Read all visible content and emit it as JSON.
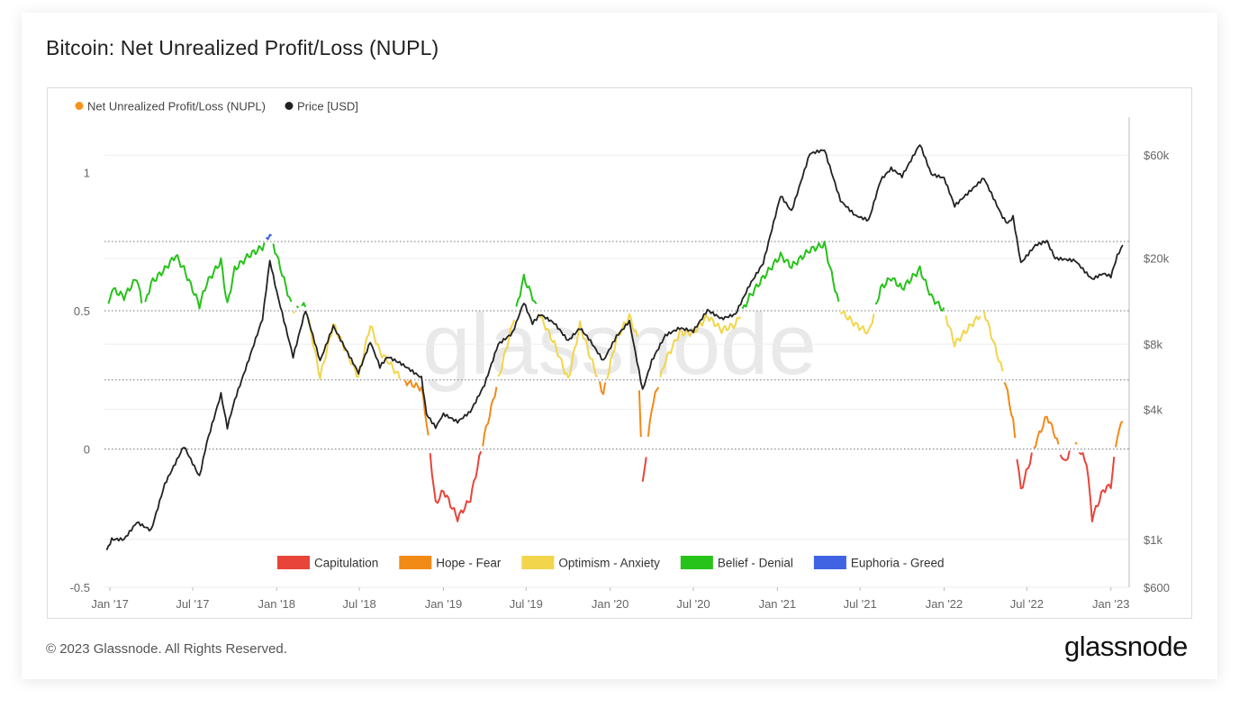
{
  "page": {
    "title": "Bitcoin: Net Unrealized Profit/Loss (NUPL)",
    "footer": "© 2023 Glassnode. All Rights Reserved.",
    "brand": "glassnode",
    "watermark": "glassnode"
  },
  "chart_data": {
    "type": "line",
    "title": "Bitcoin: Net Unrealized Profit/Loss (NUPL)",
    "legend_top": [
      {
        "name": "Net Unrealized Profit/Loss (NUPL)",
        "color": "#f7931a"
      },
      {
        "name": "Price [USD]",
        "color": "#222222"
      }
    ],
    "legend_bottom": [
      {
        "name": "Capitulation",
        "color": "#e8443a"
      },
      {
        "name": "Hope - Fear",
        "color": "#f28a16"
      },
      {
        "name": "Optimism - Anxiety",
        "color": "#f2d54b"
      },
      {
        "name": "Belief - Denial",
        "color": "#27c21a"
      },
      {
        "name": "Euphoria - Greed",
        "color": "#3f63e3"
      }
    ],
    "zones": [
      {
        "name": "Capitulation",
        "from": -0.5,
        "to": 0,
        "color": "#e8443a"
      },
      {
        "name": "Hope - Fear",
        "from": 0,
        "to": 0.25,
        "color": "#f28a16"
      },
      {
        "name": "Optimism - Anxiety",
        "from": 0.25,
        "to": 0.5,
        "color": "#f2d54b"
      },
      {
        "name": "Belief - Denial",
        "from": 0.5,
        "to": 0.75,
        "color": "#27c21a"
      },
      {
        "name": "Euphoria - Greed",
        "from": 0.75,
        "to": 1.2,
        "color": "#3f63e3"
      }
    ],
    "x_ticks": [
      "Jan '17",
      "Jul '17",
      "Jan '18",
      "Jul '18",
      "Jan '19",
      "Jul '19",
      "Jan '20",
      "Jul '20",
      "Jan '21",
      "Jul '21",
      "Jan '22",
      "Jul '22",
      "Jan '23"
    ],
    "y_left": {
      "ticks": [
        -0.5,
        0,
        0.5,
        1
      ],
      "tick_labels": [
        "-0.5",
        "0",
        "0.5",
        "1"
      ],
      "range": [
        -0.5,
        1.2
      ],
      "reference_lines": [
        0,
        0.25,
        0.5,
        0.75
      ]
    },
    "y_right": {
      "scale": "log",
      "ticks": [
        600,
        1000,
        4000,
        8000,
        20000,
        60000
      ],
      "tick_labels": [
        "$600",
        "$1k",
        "$4k",
        "$8k",
        "$20k",
        "$60k"
      ],
      "range": [
        600,
        90000
      ]
    },
    "x_range": [
      "2016-12-20",
      "2023-02-10"
    ],
    "grid": "horizontal",
    "series": [
      {
        "name": "Net Unrealized Profit/Loss (NUPL)",
        "axis": "left",
        "dates": [
          "2016-12-25",
          "2017-01-05",
          "2017-02-01",
          "2017-03-01",
          "2017-03-15",
          "2017-04-01",
          "2017-05-01",
          "2017-05-25",
          "2017-06-12",
          "2017-07-16",
          "2017-08-01",
          "2017-09-01",
          "2017-09-15",
          "2017-10-01",
          "2017-11-01",
          "2017-12-01",
          "2017-12-17",
          "2018-01-01",
          "2018-02-06",
          "2018-03-05",
          "2018-04-06",
          "2018-05-05",
          "2018-06-29",
          "2018-07-25",
          "2018-08-15",
          "2018-09-01",
          "2018-10-01",
          "2018-11-14",
          "2018-11-25",
          "2018-12-15",
          "2019-01-01",
          "2019-02-01",
          "2019-03-01",
          "2019-04-01",
          "2019-05-01",
          "2019-06-01",
          "2019-06-26",
          "2019-07-15",
          "2019-08-01",
          "2019-09-01",
          "2019-10-01",
          "2019-10-27",
          "2019-11-15",
          "2019-12-17",
          "2020-01-15",
          "2020-02-12",
          "2020-03-01",
          "2020-03-12",
          "2020-04-01",
          "2020-05-01",
          "2020-06-01",
          "2020-07-01",
          "2020-08-01",
          "2020-09-01",
          "2020-10-01",
          "2020-11-01",
          "2020-12-01",
          "2021-01-08",
          "2021-02-01",
          "2021-03-13",
          "2021-04-14",
          "2021-05-19",
          "2021-06-21",
          "2021-07-20",
          "2021-08-15",
          "2021-09-07",
          "2021-10-01",
          "2021-11-09",
          "2021-12-04",
          "2022-01-01",
          "2022-01-24",
          "2022-03-29",
          "2022-05-09",
          "2022-05-20",
          "2022-06-01",
          "2022-06-18",
          "2022-07-20",
          "2022-08-14",
          "2022-09-01",
          "2022-09-20",
          "2022-10-15",
          "2022-11-09",
          "2022-11-21",
          "2022-12-15",
          "2023-01-01",
          "2023-01-15",
          "2023-01-27"
        ],
        "values": [
          0.48,
          0.58,
          0.55,
          0.62,
          0.5,
          0.6,
          0.65,
          0.7,
          0.65,
          0.52,
          0.6,
          0.68,
          0.52,
          0.65,
          0.7,
          0.73,
          0.78,
          0.7,
          0.5,
          0.52,
          0.26,
          0.45,
          0.26,
          0.45,
          0.35,
          0.32,
          0.25,
          0.22,
          0.1,
          -0.2,
          -0.15,
          -0.25,
          -0.18,
          0.05,
          0.25,
          0.45,
          0.62,
          0.55,
          0.48,
          0.38,
          0.25,
          0.45,
          0.35,
          0.2,
          0.4,
          0.48,
          0.4,
          -0.13,
          0.15,
          0.32,
          0.42,
          0.42,
          0.48,
          0.43,
          0.45,
          0.55,
          0.62,
          0.7,
          0.66,
          0.72,
          0.74,
          0.5,
          0.45,
          0.42,
          0.58,
          0.62,
          0.58,
          0.65,
          0.55,
          0.5,
          0.38,
          0.5,
          0.28,
          0.2,
          0.1,
          -0.15,
          0.02,
          0.12,
          0.05,
          -0.05,
          0.02,
          -0.05,
          -0.25,
          -0.15,
          -0.13,
          0.05,
          0.1
        ]
      },
      {
        "name": "Price [USD]",
        "axis": "right",
        "dates": [
          "2016-12-25",
          "2017-01-05",
          "2017-02-01",
          "2017-03-01",
          "2017-04-01",
          "2017-05-01",
          "2017-06-12",
          "2017-07-16",
          "2017-08-01",
          "2017-09-01",
          "2017-09-15",
          "2017-10-01",
          "2017-11-01",
          "2017-12-01",
          "2017-12-17",
          "2018-01-01",
          "2018-02-06",
          "2018-03-05",
          "2018-04-06",
          "2018-05-05",
          "2018-06-29",
          "2018-07-25",
          "2018-08-15",
          "2018-09-01",
          "2018-10-01",
          "2018-11-14",
          "2018-11-25",
          "2018-12-15",
          "2019-01-01",
          "2019-02-01",
          "2019-03-01",
          "2019-04-01",
          "2019-05-01",
          "2019-06-01",
          "2019-06-26",
          "2019-07-15",
          "2019-08-01",
          "2019-09-01",
          "2019-10-01",
          "2019-10-27",
          "2019-11-15",
          "2019-12-17",
          "2020-01-15",
          "2020-02-12",
          "2020-03-12",
          "2020-04-01",
          "2020-05-01",
          "2020-06-01",
          "2020-07-01",
          "2020-08-01",
          "2020-09-01",
          "2020-10-01",
          "2020-11-01",
          "2020-12-01",
          "2021-01-08",
          "2021-02-01",
          "2021-03-13",
          "2021-04-14",
          "2021-05-19",
          "2021-06-21",
          "2021-07-20",
          "2021-08-15",
          "2021-09-07",
          "2021-10-01",
          "2021-11-09",
          "2021-12-04",
          "2022-01-01",
          "2022-01-24",
          "2022-03-29",
          "2022-05-09",
          "2022-05-20",
          "2022-06-01",
          "2022-06-18",
          "2022-07-20",
          "2022-08-14",
          "2022-09-01",
          "2022-10-15",
          "2022-11-09",
          "2022-11-21",
          "2022-12-15",
          "2023-01-01",
          "2023-01-15",
          "2023-01-27"
        ],
        "values": [
          890,
          1000,
          1000,
          1200,
          1100,
          1800,
          2700,
          1950,
          2800,
          4700,
          3300,
          4400,
          6800,
          10500,
          19500,
          14000,
          7000,
          11500,
          6700,
          9700,
          5900,
          8200,
          6300,
          7000,
          6500,
          5600,
          3800,
          3300,
          3800,
          3500,
          3900,
          5200,
          8000,
          9000,
          12500,
          10000,
          11000,
          10000,
          8300,
          9500,
          8500,
          6700,
          8700,
          10200,
          4900,
          6700,
          8800,
          9500,
          9200,
          11500,
          10500,
          11000,
          15000,
          19000,
          39000,
          33000,
          61000,
          63500,
          37000,
          31500,
          30000,
          46000,
          52000,
          48000,
          67500,
          49000,
          47000,
          35000,
          47000,
          31000,
          29000,
          31000,
          19000,
          23000,
          24000,
          20000,
          19500,
          17000,
          16000,
          17000,
          16500,
          20500,
          23000
        ]
      }
    ]
  }
}
